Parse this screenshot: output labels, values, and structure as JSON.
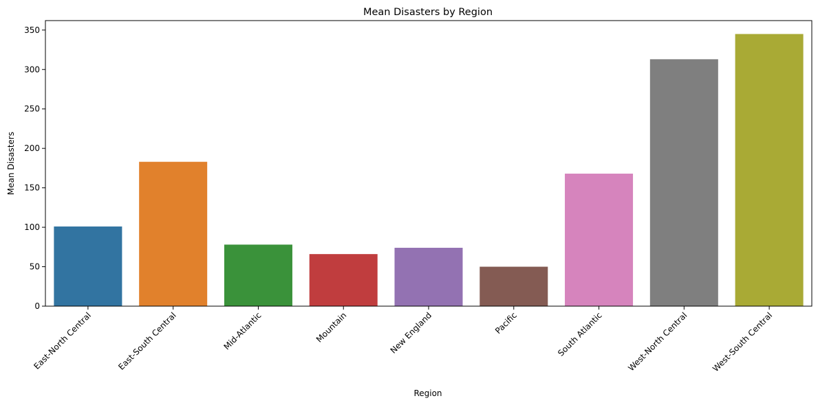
{
  "chart_data": {
    "type": "bar",
    "title": "Mean Disasters by Region",
    "xlabel": "Region",
    "ylabel": "Mean Disasters",
    "categories": [
      "East-North Central",
      "East-South Central",
      "Mid-Atlantic",
      "Mountain",
      "New England",
      "Pacific",
      "South Atlantic",
      "West-North Central",
      "West-South Central"
    ],
    "values": [
      101,
      183,
      78,
      66,
      74,
      50,
      168,
      313,
      345
    ],
    "colors": [
      "#3274a1",
      "#e1812c",
      "#3a923a",
      "#c03d3e",
      "#9372b2",
      "#845b53",
      "#d684bd",
      "#7f7f7f",
      "#a9aa35"
    ],
    "ylim": [
      0,
      362
    ],
    "yticks": [
      0,
      50,
      100,
      150,
      200,
      250,
      300,
      350
    ],
    "grid": false,
    "legend": "none"
  }
}
